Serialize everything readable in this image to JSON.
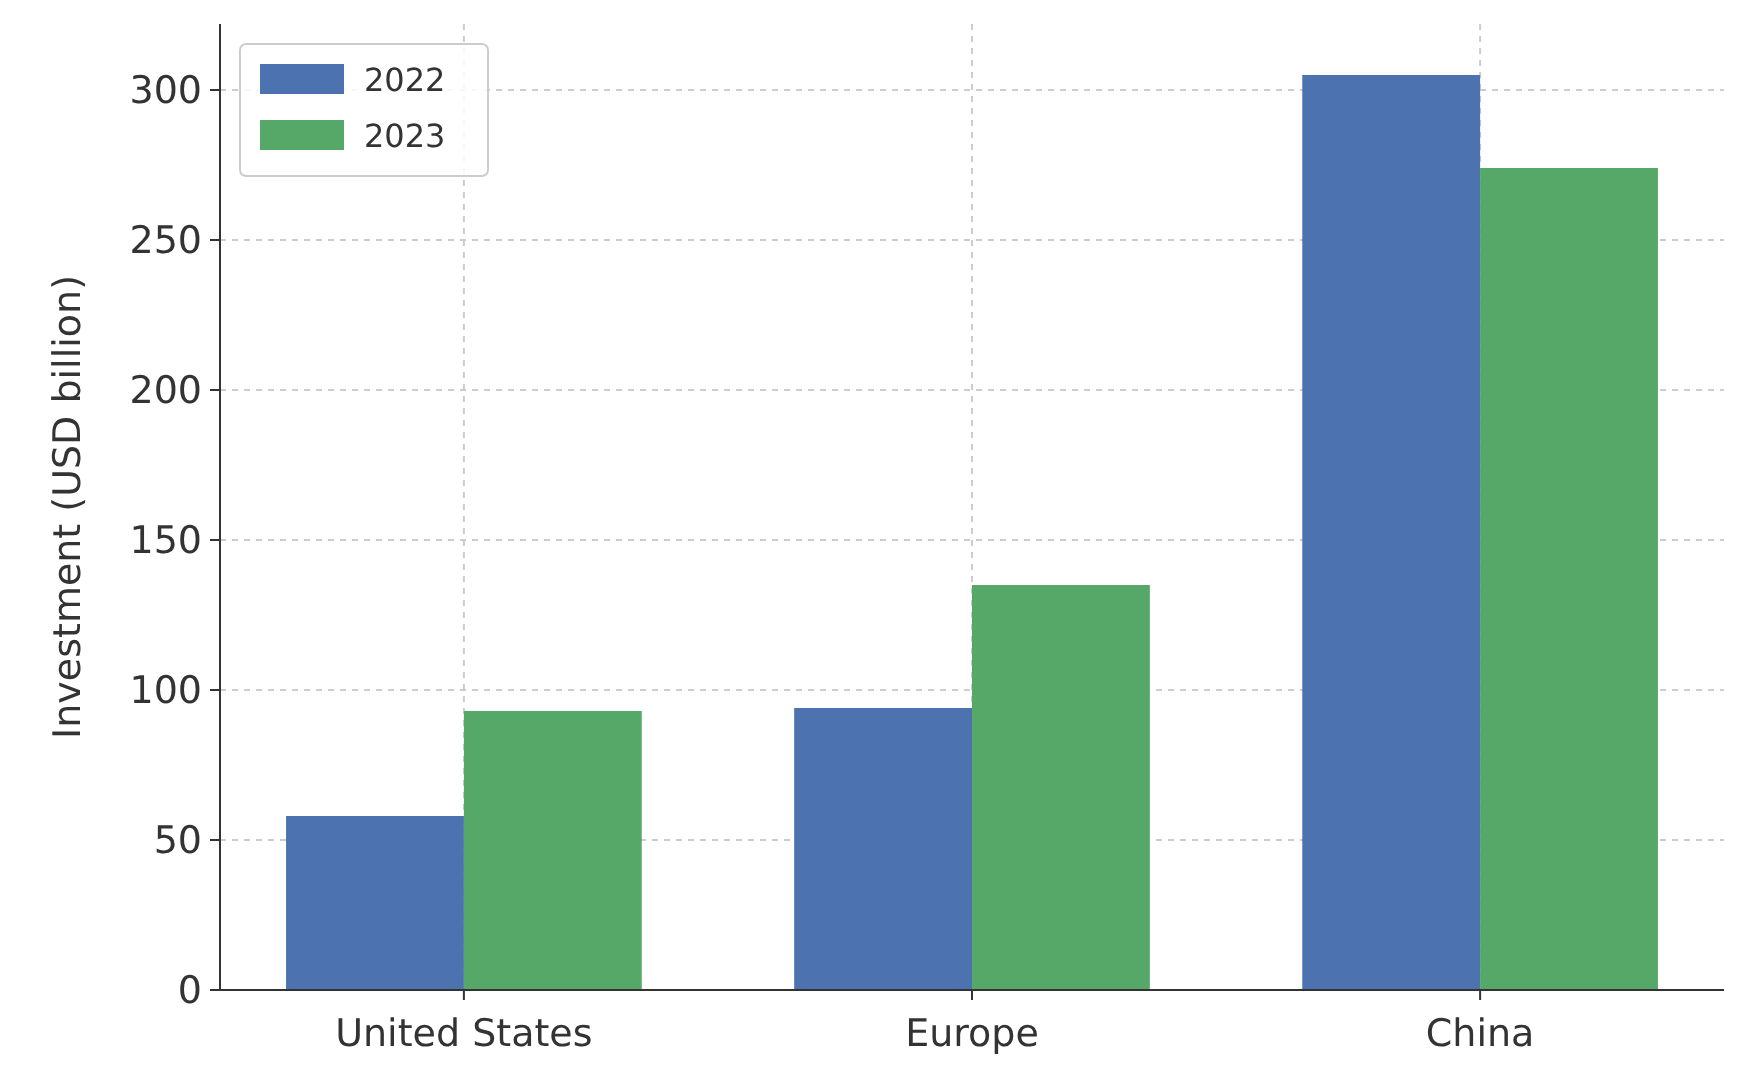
{
  "chart_data": {
    "type": "bar",
    "ylabel": "Investment (USD billion)",
    "categories": [
      "United States",
      "Europe",
      "China"
    ],
    "series": [
      {
        "name": "2022",
        "color": "#4c72b0",
        "values": [
          58,
          94,
          305
        ]
      },
      {
        "name": "2023",
        "color": "#55a868",
        "values": [
          93,
          135,
          274
        ]
      }
    ],
    "ylim": [
      0,
      322
    ],
    "yticks": [
      0,
      50,
      100,
      150,
      200,
      250,
      300
    ],
    "grid": true,
    "legend": "top left"
  }
}
